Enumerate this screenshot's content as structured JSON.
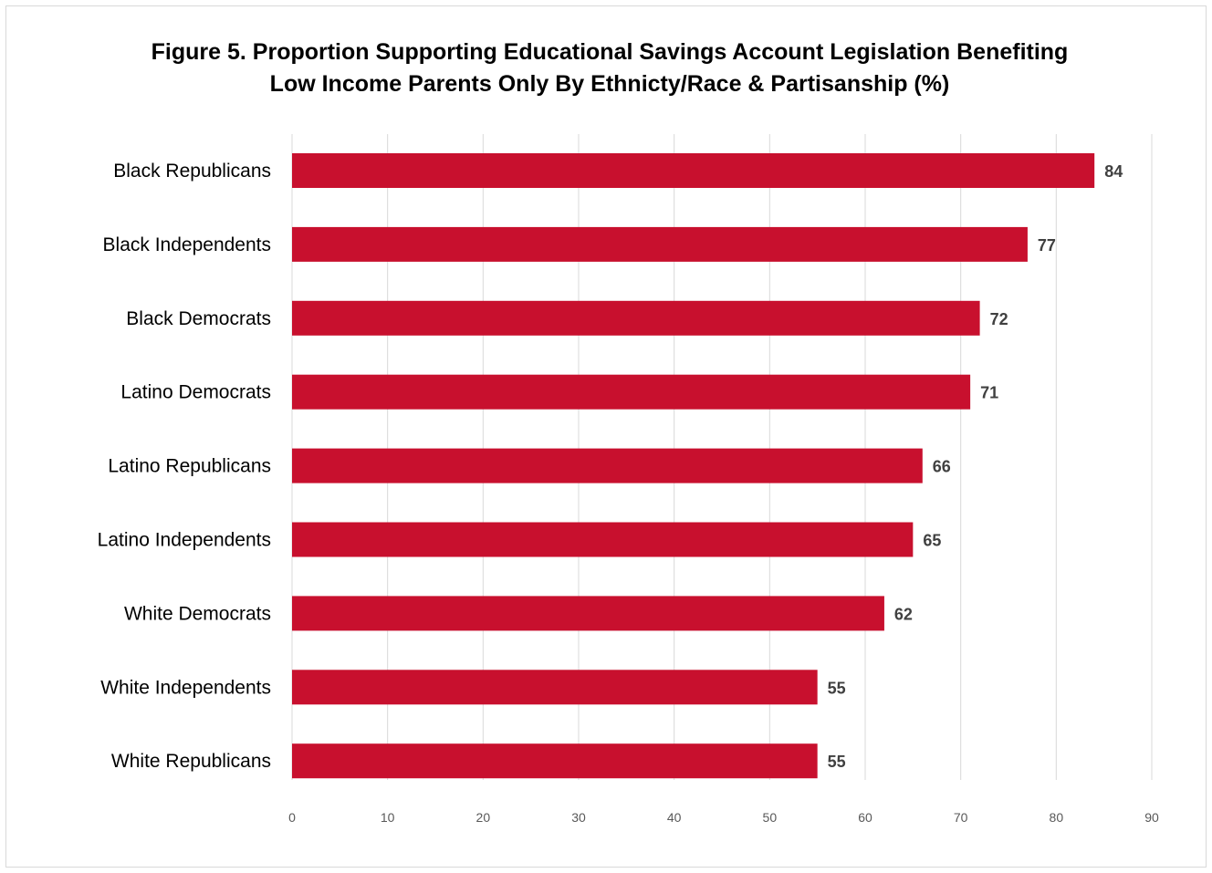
{
  "chart_data": {
    "type": "bar",
    "orientation": "horizontal",
    "title": "Figure 5. Proportion Supporting Educational Savings Account Legislation Benefiting Low Income Parents Only By Ethnicty/Race & Partisanship (%)",
    "title_lines": [
      "Figure 5. Proportion Supporting Educational Savings Account Legislation Benefiting",
      "Low Income Parents Only By Ethnicty/Race & Partisanship (%)"
    ],
    "categories": [
      "Black Republicans",
      "Black Independents",
      "Black Democrats",
      "Latino Democrats",
      "Latino Republicans",
      "Latino Independents",
      "White Democrats",
      "White Independents",
      "White Republicans"
    ],
    "values": [
      84,
      77,
      72,
      71,
      66,
      65,
      62,
      55,
      55
    ],
    "xlim": [
      0,
      90
    ],
    "xticks": [
      0,
      10,
      20,
      30,
      40,
      50,
      60,
      70,
      80,
      90
    ],
    "xlabel": "",
    "ylabel": "",
    "grid": true,
    "data_labels": true,
    "legend": "none",
    "bar_color": "#C8102E",
    "grid_color": "#d9d9d9"
  }
}
